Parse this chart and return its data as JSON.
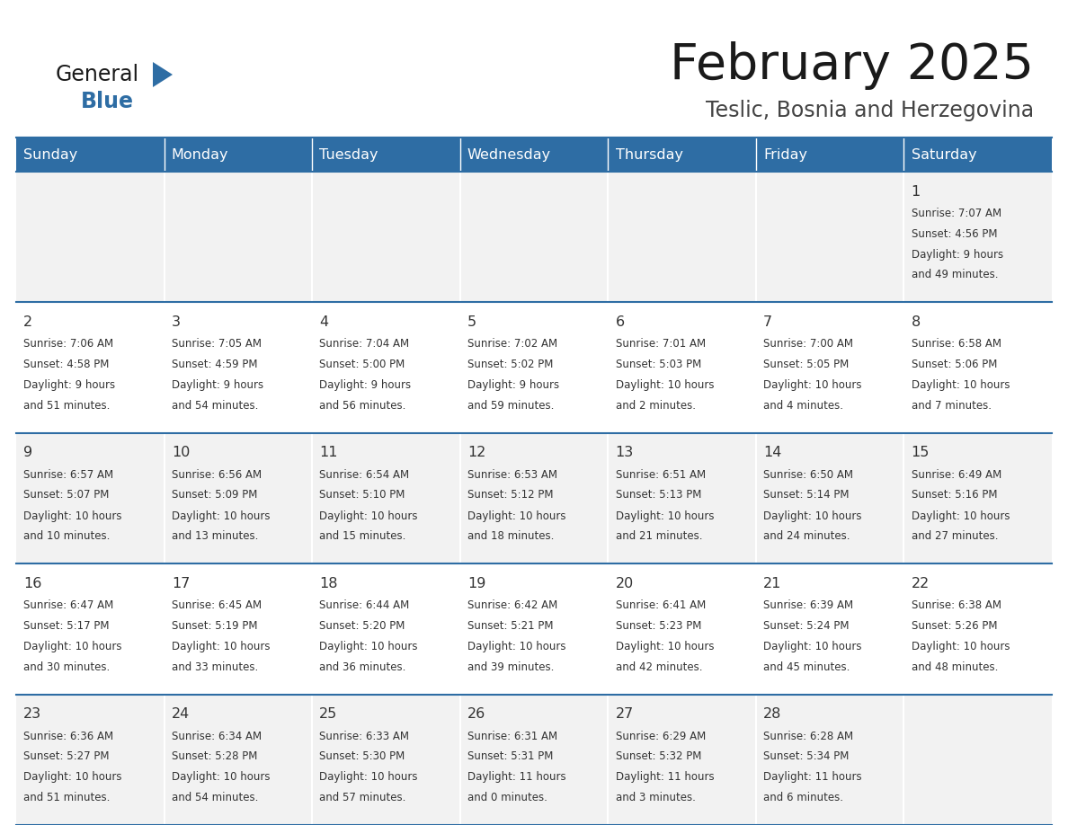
{
  "title": "February 2025",
  "subtitle": "Teslic, Bosnia and Herzegovina",
  "header_bg": "#2E6DA4",
  "header_text": "#FFFFFF",
  "cell_bg_odd": "#F2F2F2",
  "cell_bg_even": "#FFFFFF",
  "border_color": "#2E6DA4",
  "text_color": "#333333",
  "days_of_week": [
    "Sunday",
    "Monday",
    "Tuesday",
    "Wednesday",
    "Thursday",
    "Friday",
    "Saturday"
  ],
  "calendar_data": [
    [
      null,
      null,
      null,
      null,
      null,
      null,
      {
        "day": "1",
        "sunrise": "7:07 AM",
        "sunset": "4:56 PM",
        "daylight1": "9 hours",
        "daylight2": "and 49 minutes."
      }
    ],
    [
      {
        "day": "2",
        "sunrise": "7:06 AM",
        "sunset": "4:58 PM",
        "daylight1": "9 hours",
        "daylight2": "and 51 minutes."
      },
      {
        "day": "3",
        "sunrise": "7:05 AM",
        "sunset": "4:59 PM",
        "daylight1": "9 hours",
        "daylight2": "and 54 minutes."
      },
      {
        "day": "4",
        "sunrise": "7:04 AM",
        "sunset": "5:00 PM",
        "daylight1": "9 hours",
        "daylight2": "and 56 minutes."
      },
      {
        "day": "5",
        "sunrise": "7:02 AM",
        "sunset": "5:02 PM",
        "daylight1": "9 hours",
        "daylight2": "and 59 minutes."
      },
      {
        "day": "6",
        "sunrise": "7:01 AM",
        "sunset": "5:03 PM",
        "daylight1": "10 hours",
        "daylight2": "and 2 minutes."
      },
      {
        "day": "7",
        "sunrise": "7:00 AM",
        "sunset": "5:05 PM",
        "daylight1": "10 hours",
        "daylight2": "and 4 minutes."
      },
      {
        "day": "8",
        "sunrise": "6:58 AM",
        "sunset": "5:06 PM",
        "daylight1": "10 hours",
        "daylight2": "and 7 minutes."
      }
    ],
    [
      {
        "day": "9",
        "sunrise": "6:57 AM",
        "sunset": "5:07 PM",
        "daylight1": "10 hours",
        "daylight2": "and 10 minutes."
      },
      {
        "day": "10",
        "sunrise": "6:56 AM",
        "sunset": "5:09 PM",
        "daylight1": "10 hours",
        "daylight2": "and 13 minutes."
      },
      {
        "day": "11",
        "sunrise": "6:54 AM",
        "sunset": "5:10 PM",
        "daylight1": "10 hours",
        "daylight2": "and 15 minutes."
      },
      {
        "day": "12",
        "sunrise": "6:53 AM",
        "sunset": "5:12 PM",
        "daylight1": "10 hours",
        "daylight2": "and 18 minutes."
      },
      {
        "day": "13",
        "sunrise": "6:51 AM",
        "sunset": "5:13 PM",
        "daylight1": "10 hours",
        "daylight2": "and 21 minutes."
      },
      {
        "day": "14",
        "sunrise": "6:50 AM",
        "sunset": "5:14 PM",
        "daylight1": "10 hours",
        "daylight2": "and 24 minutes."
      },
      {
        "day": "15",
        "sunrise": "6:49 AM",
        "sunset": "5:16 PM",
        "daylight1": "10 hours",
        "daylight2": "and 27 minutes."
      }
    ],
    [
      {
        "day": "16",
        "sunrise": "6:47 AM",
        "sunset": "5:17 PM",
        "daylight1": "10 hours",
        "daylight2": "and 30 minutes."
      },
      {
        "day": "17",
        "sunrise": "6:45 AM",
        "sunset": "5:19 PM",
        "daylight1": "10 hours",
        "daylight2": "and 33 minutes."
      },
      {
        "day": "18",
        "sunrise": "6:44 AM",
        "sunset": "5:20 PM",
        "daylight1": "10 hours",
        "daylight2": "and 36 minutes."
      },
      {
        "day": "19",
        "sunrise": "6:42 AM",
        "sunset": "5:21 PM",
        "daylight1": "10 hours",
        "daylight2": "and 39 minutes."
      },
      {
        "day": "20",
        "sunrise": "6:41 AM",
        "sunset": "5:23 PM",
        "daylight1": "10 hours",
        "daylight2": "and 42 minutes."
      },
      {
        "day": "21",
        "sunrise": "6:39 AM",
        "sunset": "5:24 PM",
        "daylight1": "10 hours",
        "daylight2": "and 45 minutes."
      },
      {
        "day": "22",
        "sunrise": "6:38 AM",
        "sunset": "5:26 PM",
        "daylight1": "10 hours",
        "daylight2": "and 48 minutes."
      }
    ],
    [
      {
        "day": "23",
        "sunrise": "6:36 AM",
        "sunset": "5:27 PM",
        "daylight1": "10 hours",
        "daylight2": "and 51 minutes."
      },
      {
        "day": "24",
        "sunrise": "6:34 AM",
        "sunset": "5:28 PM",
        "daylight1": "10 hours",
        "daylight2": "and 54 minutes."
      },
      {
        "day": "25",
        "sunrise": "6:33 AM",
        "sunset": "5:30 PM",
        "daylight1": "10 hours",
        "daylight2": "and 57 minutes."
      },
      {
        "day": "26",
        "sunrise": "6:31 AM",
        "sunset": "5:31 PM",
        "daylight1": "11 hours",
        "daylight2": "and 0 minutes."
      },
      {
        "day": "27",
        "sunrise": "6:29 AM",
        "sunset": "5:32 PM",
        "daylight1": "11 hours",
        "daylight2": "and 3 minutes."
      },
      {
        "day": "28",
        "sunrise": "6:28 AM",
        "sunset": "5:34 PM",
        "daylight1": "11 hours",
        "daylight2": "and 6 minutes."
      },
      null
    ]
  ],
  "logo_general_color": "#1a1a1a",
  "logo_blue_color": "#2E6DA4",
  "logo_triangle_color": "#2E6DA4"
}
